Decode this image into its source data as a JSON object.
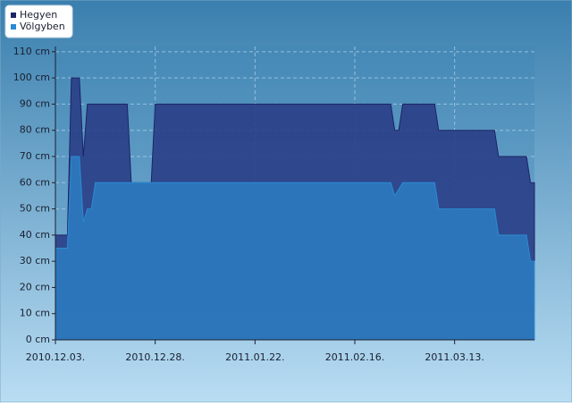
{
  "chart_data": {
    "type": "area",
    "x": [],
    "series": [
      {
        "name": "Hegyen",
        "color": "#1c2466",
        "x": [
          "2010-12-03",
          "2010-12-06",
          "2010-12-07",
          "2010-12-09",
          "2010-12-10",
          "2010-12-11",
          "2010-12-21",
          "2010-12-22",
          "2010-12-27",
          "2010-12-28",
          "2011-02-25",
          "2011-02-26",
          "2011-02-27",
          "2011-02-28",
          "2011-03-08",
          "2011-03-09",
          "2011-03-23",
          "2011-03-24",
          "2011-03-31",
          "2011-04-01",
          "2011-04-02"
        ],
        "values": [
          40,
          40,
          100,
          100,
          70,
          90,
          90,
          60,
          60,
          90,
          90,
          80,
          80,
          90,
          90,
          80,
          80,
          70,
          70,
          60,
          60
        ]
      },
      {
        "name": "Völgyben",
        "color": "#2a8bd4",
        "x": [
          "2010-12-03",
          "2010-12-06",
          "2010-12-07",
          "2010-12-09",
          "2010-12-10",
          "2010-12-11",
          "2010-12-12",
          "2010-12-13",
          "2011-02-25",
          "2011-02-26",
          "2011-02-28",
          "2011-03-08",
          "2011-03-09",
          "2011-03-23",
          "2011-03-24",
          "2011-03-31",
          "2011-04-01",
          "2011-04-02"
        ],
        "values": [
          35,
          35,
          70,
          70,
          45,
          50,
          50,
          60,
          60,
          55,
          60,
          60,
          50,
          50,
          40,
          40,
          30,
          30
        ]
      }
    ],
    "xlim": [
      "2010-12-03",
      "2011-04-02"
    ],
    "xticks": [
      {
        "value": "2010-12-03",
        "label": "2010.12.03."
      },
      {
        "value": "2010-12-28",
        "label": "2010.12.28."
      },
      {
        "value": "2011-01-22",
        "label": "2011.01.22."
      },
      {
        "value": "2011-02-16",
        "label": "2011.02.16."
      },
      {
        "value": "2011-03-13",
        "label": "2011.03.13."
      }
    ],
    "ylim": [
      0,
      112
    ],
    "yticks": [
      {
        "value": 0,
        "label": "0 cm"
      },
      {
        "value": 10,
        "label": "10 cm"
      },
      {
        "value": 20,
        "label": "20 cm"
      },
      {
        "value": 30,
        "label": "30 cm"
      },
      {
        "value": 40,
        "label": "40 cm"
      },
      {
        "value": 50,
        "label": "50 cm"
      },
      {
        "value": 60,
        "label": "60 cm"
      },
      {
        "value": 70,
        "label": "70 cm"
      },
      {
        "value": 80,
        "label": "80 cm"
      },
      {
        "value": 90,
        "label": "90 cm"
      },
      {
        "value": 100,
        "label": "100 cm"
      },
      {
        "value": 110,
        "label": "110 cm"
      }
    ],
    "grid": true,
    "legend": "top-left"
  }
}
